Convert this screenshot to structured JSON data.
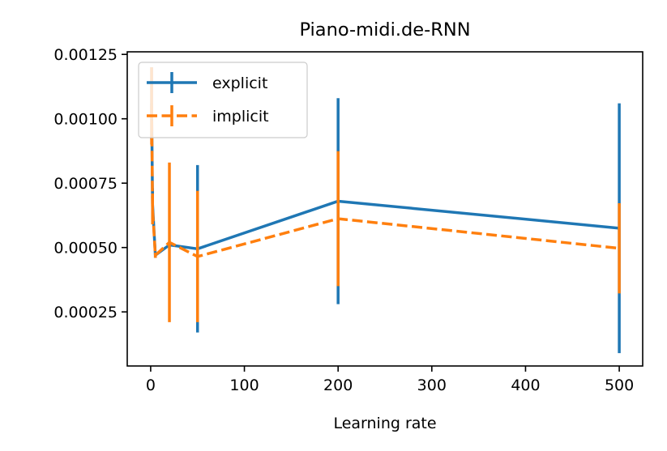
{
  "chart_data": {
    "type": "line",
    "title": "Piano-midi.de-RNN",
    "xlabel": "Learning rate",
    "ylabel": "",
    "xlim": [
      -25,
      525
    ],
    "ylim": [
      4e-05,
      0.00126
    ],
    "xticks": [
      0,
      100,
      200,
      300,
      400,
      500
    ],
    "xtick_labels": [
      "0",
      "100",
      "200",
      "300",
      "400",
      "500"
    ],
    "yticks": [
      0.00025,
      0.0005,
      0.00075,
      0.001,
      0.00125
    ],
    "ytick_labels": [
      "0.00025",
      "0.00050",
      "0.00075",
      "0.00100",
      "0.00125"
    ],
    "grid": false,
    "legend_position": "top-left",
    "series": [
      {
        "name": "explicit",
        "color": "#1f77b4",
        "linestyle": "solid",
        "points": [
          {
            "x": 1,
            "y": 0.00106,
            "err": 0.00014
          },
          {
            "x": 2,
            "y": 0.00067,
            "err": 6e-05
          },
          {
            "x": 5,
            "y": 0.00047,
            "err": 1e-05
          },
          {
            "x": 20,
            "y": 0.00051,
            "err": 1e-05
          },
          {
            "x": 50,
            "y": 0.000495,
            "err": 0.000325
          },
          {
            "x": 200,
            "y": 0.00068,
            "err": 0.0004
          },
          {
            "x": 500,
            "y": 0.000575,
            "err": 0.000485
          }
        ]
      },
      {
        "name": "implicit",
        "color": "#ff7f0e",
        "linestyle": "dashed",
        "points": [
          {
            "x": 1,
            "y": 0.00105,
            "err": 0.00015
          },
          {
            "x": 2,
            "y": 0.00065,
            "err": 6e-05
          },
          {
            "x": 5,
            "y": 0.00047,
            "err": 1e-05
          },
          {
            "x": 20,
            "y": 0.00052,
            "err": 0.00031
          },
          {
            "x": 50,
            "y": 0.000465,
            "err": 0.000255
          },
          {
            "x": 200,
            "y": 0.000612,
            "err": 0.000262
          },
          {
            "x": 500,
            "y": 0.000497,
            "err": 0.000175
          }
        ]
      }
    ]
  }
}
